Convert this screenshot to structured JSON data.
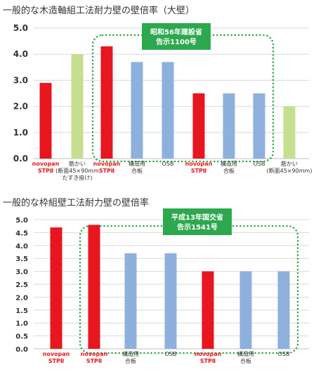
{
  "chart_data": [
    {
      "type": "bar",
      "title": "一般的な木造軸組工法耐力壁の壁倍率（大壁）",
      "ylim": [
        0,
        5
      ],
      "yticks": [
        "0.0",
        "1.0",
        "2.0",
        "3.0",
        "4.0",
        "5.0"
      ],
      "grid": true,
      "categories": [
        [
          "novopan",
          "STPⅡ"
        ],
        [
          "筋かい",
          "(断面45×90mm",
          "たすき掛け)"
        ],
        [
          "novopan",
          "STPⅡ"
        ],
        [
          "構造用",
          "合板"
        ],
        [
          "OSB"
        ],
        [
          "novopan",
          "STPⅡ"
        ],
        [
          "構造用",
          "合板"
        ],
        [
          "OSB"
        ],
        [
          "筋かい",
          "(断面45×90mm)"
        ]
      ],
      "values": [
        2.9,
        4.0,
        4.3,
        3.7,
        3.7,
        2.5,
        2.5,
        2.5,
        2.0
      ],
      "colors": [
        "#e8161e",
        "#c5df8f",
        "#e8161e",
        "#8eb0dc",
        "#8eb0dc",
        "#e8161e",
        "#8eb0dc",
        "#8eb0dc",
        "#c5df8f"
      ],
      "label_colors": [
        "#e8161e",
        "#333333",
        "#e8161e",
        "#333333",
        "#333333",
        "#e8161e",
        "#333333",
        "#333333",
        "#333333"
      ],
      "callout": {
        "lines": [
          "昭和56年建設省",
          "告示1100号"
        ],
        "first_bar": 2,
        "last_bar": 7
      }
    },
    {
      "type": "bar",
      "title": "一般的な枠組壁工法耐力壁の壁倍率",
      "ylim": [
        0,
        5
      ],
      "yticks": [
        "0.0",
        "0.5",
        "1.0",
        "1.5",
        "2.0",
        "2.5",
        "3.0",
        "3.5",
        "4.0",
        "4.5",
        "5.0"
      ],
      "grid": true,
      "categories": [
        [
          "novopan",
          "STPⅡ"
        ],
        [
          "novopan",
          "STPⅡ"
        ],
        [
          "構造用",
          "合板"
        ],
        [
          "OSB"
        ],
        [
          "novopan",
          "STPⅡ"
        ],
        [
          "構造用",
          "合板"
        ],
        [
          "OSB"
        ]
      ],
      "values": [
        4.7,
        4.8,
        3.7,
        3.7,
        3.0,
        3.0,
        3.0
      ],
      "colors": [
        "#e8161e",
        "#e8161e",
        "#8eb0dc",
        "#8eb0dc",
        "#e8161e",
        "#8eb0dc",
        "#8eb0dc"
      ],
      "label_colors": [
        "#e8161e",
        "#e8161e",
        "#333333",
        "#333333",
        "#e8161e",
        "#333333",
        "#333333"
      ],
      "callout": {
        "lines": [
          "平成13年国交省",
          "告示1541号"
        ],
        "first_bar": 1,
        "last_bar": 6
      }
    }
  ],
  "colors": {
    "grid": "#d9d9d9",
    "axis": "#bfbfbf",
    "callout_fill": "#2da84e",
    "callout_border": "#2da84e",
    "tick_text": "#333333"
  }
}
